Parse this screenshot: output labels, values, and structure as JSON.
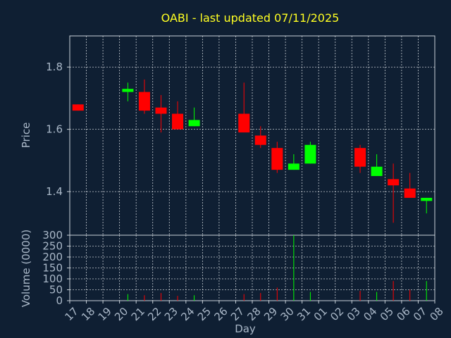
{
  "chart_data": {
    "type": "candlestick",
    "title": "OABI - last updated 07/11/2025",
    "xlabel": "Day",
    "x_ticks": [
      "17",
      "18",
      "19",
      "20",
      "21",
      "22",
      "23",
      "24",
      "25",
      "26",
      "27",
      "28",
      "29",
      "30",
      "31",
      "01",
      "02",
      "03",
      "04",
      "05",
      "06",
      "07",
      "08"
    ],
    "price_panel": {
      "ylabel": "Price",
      "ylim": [
        1.26,
        1.9
      ],
      "yticks": [
        1.4,
        1.6,
        1.8
      ],
      "ytick_labels": [
        "1.4",
        "1.6",
        "1.8"
      ]
    },
    "volume_panel": {
      "ylabel": "Volume (0000)",
      "ylim": [
        0,
        300
      ],
      "yticks": [
        0,
        50,
        100,
        150,
        200,
        250,
        300
      ],
      "ytick_labels": [
        "0",
        "50",
        "100",
        "150",
        "200",
        "250",
        "300"
      ]
    },
    "up_color": "#00ff00",
    "down_color": "#ff0000",
    "candles": [
      {
        "day": "17",
        "open": 1.68,
        "high": 1.68,
        "low": 1.66,
        "close": 1.66,
        "volume": 0
      },
      {
        "day": "20",
        "open": 1.72,
        "high": 1.75,
        "low": 1.69,
        "close": 1.73,
        "volume": 30
      },
      {
        "day": "21",
        "open": 1.72,
        "high": 1.76,
        "low": 1.65,
        "close": 1.66,
        "volume": 25
      },
      {
        "day": "22",
        "open": 1.67,
        "high": 1.71,
        "low": 1.59,
        "close": 1.65,
        "volume": 35
      },
      {
        "day": "23",
        "open": 1.65,
        "high": 1.69,
        "low": 1.6,
        "close": 1.6,
        "volume": 22
      },
      {
        "day": "24",
        "open": 1.61,
        "high": 1.67,
        "low": 1.61,
        "close": 1.63,
        "volume": 25
      },
      {
        "day": "27",
        "open": 1.65,
        "high": 1.75,
        "low": 1.59,
        "close": 1.59,
        "volume": 30
      },
      {
        "day": "28",
        "open": 1.58,
        "high": 1.61,
        "low": 1.54,
        "close": 1.55,
        "volume": 35
      },
      {
        "day": "29",
        "open": 1.54,
        "high": 1.56,
        "low": 1.46,
        "close": 1.47,
        "volume": 60
      },
      {
        "day": "30",
        "open": 1.47,
        "high": 1.52,
        "low": 1.47,
        "close": 1.49,
        "volume": 300
      },
      {
        "day": "31",
        "open": 1.49,
        "high": 1.56,
        "low": 1.49,
        "close": 1.55,
        "volume": 40
      },
      {
        "day": "03",
        "open": 1.54,
        "high": 1.55,
        "low": 1.46,
        "close": 1.48,
        "volume": 45
      },
      {
        "day": "04",
        "open": 1.45,
        "high": 1.52,
        "low": 1.45,
        "close": 1.48,
        "volume": 40
      },
      {
        "day": "05",
        "open": 1.44,
        "high": 1.49,
        "low": 1.3,
        "close": 1.42,
        "volume": 90
      },
      {
        "day": "06",
        "open": 1.41,
        "high": 1.46,
        "low": 1.38,
        "close": 1.38,
        "volume": 50
      },
      {
        "day": "07",
        "open": 1.37,
        "high": 1.38,
        "low": 1.33,
        "close": 1.38,
        "volume": 90
      }
    ]
  }
}
